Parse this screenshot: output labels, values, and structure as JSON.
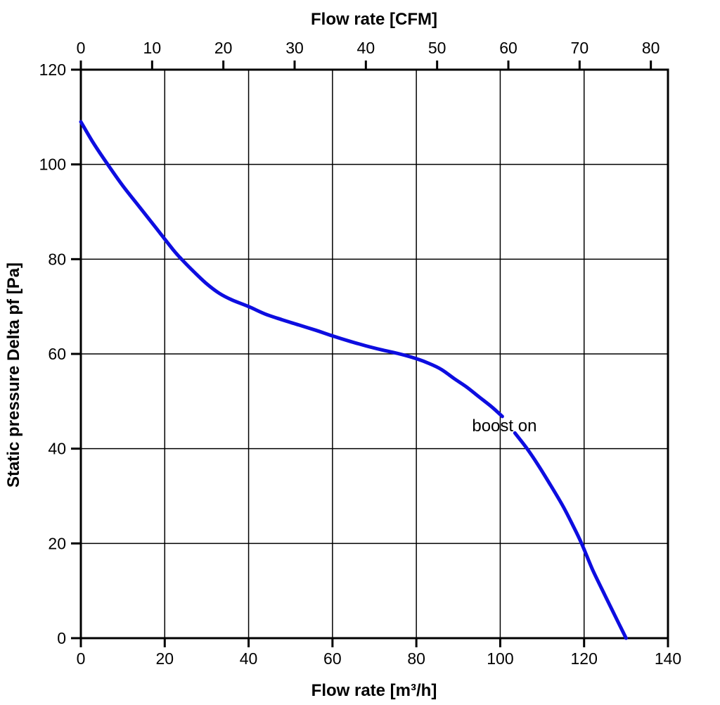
{
  "page": {
    "background": "#ffffff"
  },
  "colors": {
    "axis": "#000000",
    "grid": "#000000",
    "text": "#000000",
    "curve": "#0d0de0"
  },
  "chart_data": {
    "type": "line",
    "title": "",
    "x_bottom_axis": {
      "label": "Flow rate [m³/h]",
      "min": 0,
      "max": 140,
      "ticks": [
        0,
        20,
        40,
        60,
        80,
        100,
        120,
        140
      ]
    },
    "x_top_axis": {
      "label": "Flow rate [CFM]",
      "min": 0,
      "max": 82.4,
      "ticks": [
        0,
        10,
        20,
        30,
        40,
        50,
        60,
        70,
        80
      ],
      "m3h_per_cfm": 1.699
    },
    "y_axis": {
      "label": "Static pressure Delta pf [Pa]",
      "min": 0,
      "max": 120,
      "ticks": [
        0,
        20,
        40,
        60,
        80,
        100,
        120
      ]
    },
    "grid": {
      "show": true,
      "x_step": 20,
      "y_step": 20
    },
    "legend": {
      "show": false
    },
    "series": [
      {
        "name": "boost on",
        "units": [
          "m3/h",
          "Pa"
        ],
        "segments": [
          [
            [
              0,
              109
            ],
            [
              3,
              104.5
            ],
            [
              6.4,
              100
            ],
            [
              10,
              95.5
            ],
            [
              14,
              91
            ],
            [
              18,
              86.5
            ],
            [
              22,
              82
            ],
            [
              24,
              80
            ],
            [
              27,
              77.3
            ],
            [
              30,
              74.8
            ],
            [
              33,
              72.8
            ],
            [
              36,
              71.4
            ],
            [
              40,
              70
            ],
            [
              44,
              68.4
            ],
            [
              48,
              67.2
            ],
            [
              52,
              66.1
            ],
            [
              56,
              65
            ],
            [
              60,
              63.8
            ],
            [
              64,
              62.7
            ],
            [
              68,
              61.7
            ],
            [
              72,
              60.8
            ],
            [
              76,
              60
            ],
            [
              80,
              59
            ],
            [
              83,
              58
            ],
            [
              86,
              56.7
            ],
            [
              89,
              54.8
            ],
            [
              92,
              53
            ],
            [
              95,
              50.9
            ],
            [
              98,
              48.8
            ],
            [
              100.5,
              46.8
            ]
          ],
          [
            [
              103.5,
              43.3
            ],
            [
              106.4,
              40
            ],
            [
              109,
              36.6
            ],
            [
              112,
              32.3
            ],
            [
              115,
              27.8
            ],
            [
              117.5,
              23.5
            ],
            [
              119.5,
              19.8
            ],
            [
              122,
              14.5
            ],
            [
              125,
              9
            ],
            [
              127.5,
              4.5
            ],
            [
              130,
              0
            ]
          ]
        ]
      }
    ],
    "annotation": {
      "text": "boost on",
      "x": 101,
      "y": 45
    }
  }
}
